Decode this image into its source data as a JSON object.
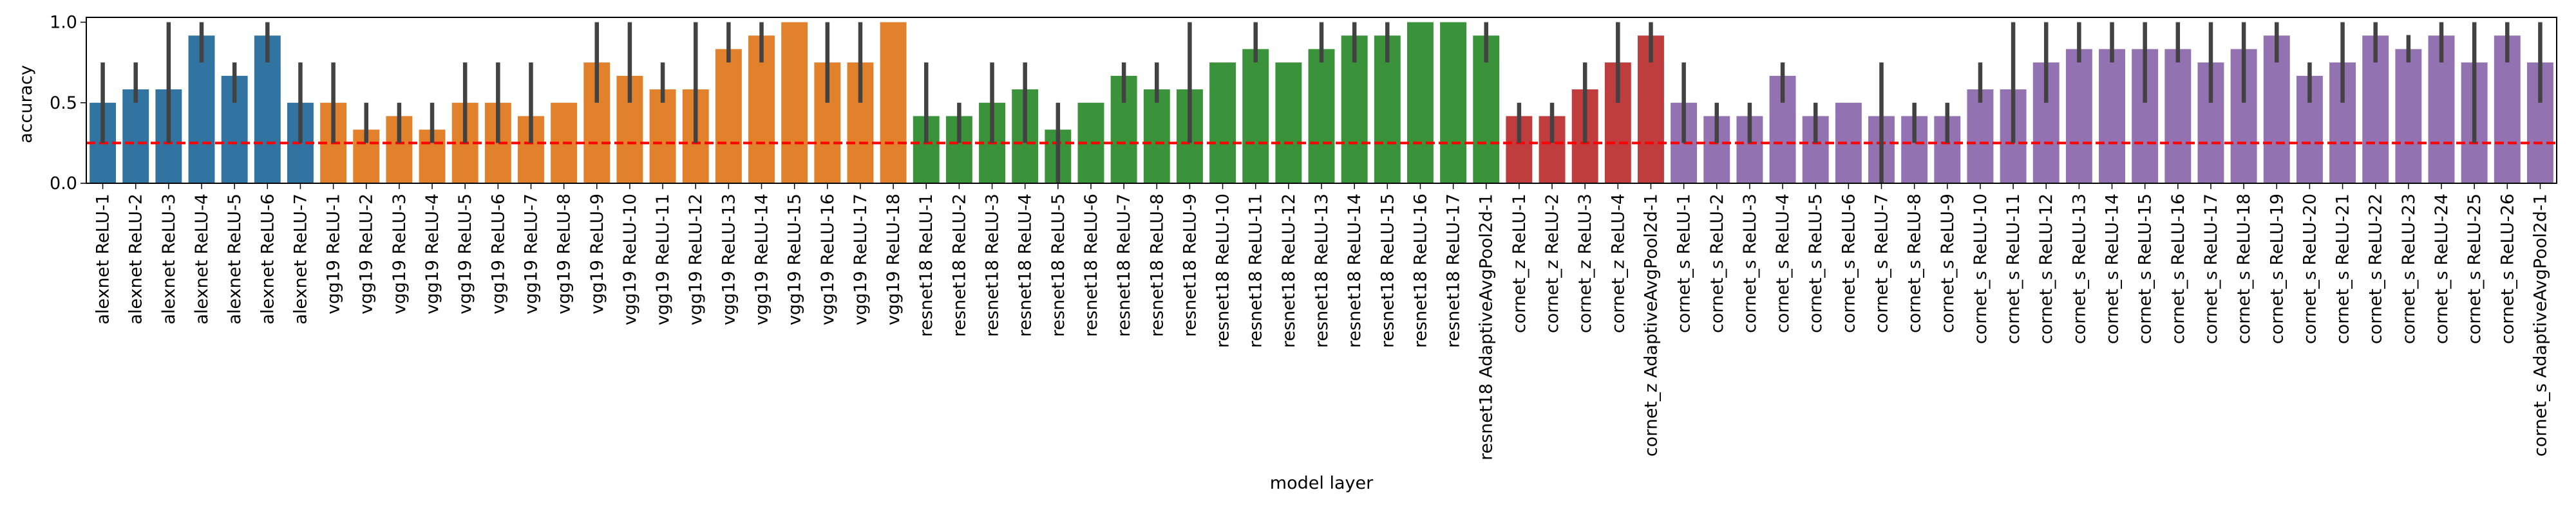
{
  "chart_data": {
    "type": "bar",
    "xlabel": "model layer",
    "ylabel": "accuracy",
    "ylim": [
      0,
      1.03
    ],
    "yticks": [
      0.0,
      0.5,
      1.0
    ],
    "ytick_labels": [
      "0.0",
      "0.5",
      "1.0"
    ],
    "reference_line": {
      "y": 0.25,
      "style": "dashed",
      "color": "#ff0000"
    },
    "grid": false,
    "legend": "none",
    "groups": [
      {
        "color": "#3274a1",
        "start": 0,
        "count": 7
      },
      {
        "color": "#e1812c",
        "start": 7,
        "count": 18
      },
      {
        "color": "#3a923a",
        "start": 25,
        "count": 18
      },
      {
        "color": "#c03d3e",
        "start": 43,
        "count": 5
      },
      {
        "color": "#9372b2",
        "start": 48,
        "count": 27
      }
    ],
    "categories": [
      "alexnet ReLU-1",
      "alexnet ReLU-2",
      "alexnet ReLU-3",
      "alexnet ReLU-4",
      "alexnet ReLU-5",
      "alexnet ReLU-6",
      "alexnet ReLU-7",
      "vgg19 ReLU-1",
      "vgg19 ReLU-2",
      "vgg19 ReLU-3",
      "vgg19 ReLU-4",
      "vgg19 ReLU-5",
      "vgg19 ReLU-6",
      "vgg19 ReLU-7",
      "vgg19 ReLU-8",
      "vgg19 ReLU-9",
      "vgg19 ReLU-10",
      "vgg19 ReLU-11",
      "vgg19 ReLU-12",
      "vgg19 ReLU-13",
      "vgg19 ReLU-14",
      "vgg19 ReLU-15",
      "vgg19 ReLU-16",
      "vgg19 ReLU-17",
      "vgg19 ReLU-18",
      "resnet18 ReLU-1",
      "resnet18 ReLU-2",
      "resnet18 ReLU-3",
      "resnet18 ReLU-4",
      "resnet18 ReLU-5",
      "resnet18 ReLU-6",
      "resnet18 ReLU-7",
      "resnet18 ReLU-8",
      "resnet18 ReLU-9",
      "resnet18 ReLU-10",
      "resnet18 ReLU-11",
      "resnet18 ReLU-12",
      "resnet18 ReLU-13",
      "resnet18 ReLU-14",
      "resnet18 ReLU-15",
      "resnet18 ReLU-16",
      "resnet18 ReLU-17",
      "resnet18 AdaptiveAvgPool2d-1",
      "cornet_z ReLU-1",
      "cornet_z ReLU-2",
      "cornet_z ReLU-3",
      "cornet_z ReLU-4",
      "cornet_z AdaptiveAvgPool2d-1",
      "cornet_s ReLU-1",
      "cornet_s ReLU-2",
      "cornet_s ReLU-3",
      "cornet_s ReLU-4",
      "cornet_s ReLU-5",
      "cornet_s ReLU-6",
      "cornet_s ReLU-7",
      "cornet_s ReLU-8",
      "cornet_s ReLU-9",
      "cornet_s ReLU-10",
      "cornet_s ReLU-11",
      "cornet_s ReLU-12",
      "cornet_s ReLU-13",
      "cornet_s ReLU-14",
      "cornet_s ReLU-15",
      "cornet_s ReLU-16",
      "cornet_s ReLU-17",
      "cornet_s ReLU-18",
      "cornet_s ReLU-19",
      "cornet_s ReLU-20",
      "cornet_s ReLU-21",
      "cornet_s ReLU-22",
      "cornet_s ReLU-23",
      "cornet_s ReLU-24",
      "cornet_s ReLU-25",
      "cornet_s ReLU-26",
      "cornet_s AdaptiveAvgPool2d-1"
    ],
    "values": [
      0.5,
      0.583,
      0.583,
      0.917,
      0.667,
      0.917,
      0.5,
      0.5,
      0.333,
      0.417,
      0.333,
      0.5,
      0.5,
      0.417,
      0.5,
      0.75,
      0.667,
      0.583,
      0.583,
      0.833,
      0.917,
      1.0,
      0.75,
      0.75,
      1.0,
      0.417,
      0.417,
      0.5,
      0.583,
      0.333,
      0.5,
      0.667,
      0.583,
      0.583,
      0.75,
      0.833,
      0.75,
      0.833,
      0.917,
      0.917,
      1.0,
      1.0,
      0.917,
      0.417,
      0.417,
      0.583,
      0.75,
      0.917,
      0.5,
      0.417,
      0.417,
      0.667,
      0.417,
      0.5,
      0.417,
      0.417,
      0.417,
      0.583,
      0.583,
      0.75,
      0.833,
      0.833,
      0.833,
      0.833,
      0.75,
      0.833,
      0.917,
      0.667,
      0.75,
      0.917,
      0.833,
      0.917,
      0.75,
      0.917,
      0.75
    ],
    "error_bars": [
      [
        0.25,
        0.75
      ],
      [
        0.5,
        0.75
      ],
      [
        0.25,
        1.0
      ],
      [
        0.75,
        1.0
      ],
      [
        0.5,
        0.75
      ],
      [
        0.75,
        1.0
      ],
      [
        0.25,
        0.75
      ],
      [
        0.25,
        0.75
      ],
      [
        0.25,
        0.5
      ],
      [
        0.25,
        0.5
      ],
      [
        0.25,
        0.5
      ],
      [
        0.25,
        0.75
      ],
      [
        0.25,
        0.75
      ],
      [
        0.25,
        0.75
      ],
      null,
      [
        0.5,
        1.0
      ],
      [
        0.5,
        1.0
      ],
      [
        0.5,
        0.75
      ],
      [
        0.25,
        1.0
      ],
      [
        0.75,
        1.0
      ],
      [
        0.75,
        1.0
      ],
      null,
      [
        0.5,
        1.0
      ],
      [
        0.5,
        1.0
      ],
      null,
      [
        0.25,
        0.75
      ],
      [
        0.25,
        0.5
      ],
      [
        0.25,
        0.75
      ],
      [
        0.25,
        0.75
      ],
      [
        0.0,
        0.5
      ],
      null,
      [
        0.5,
        0.75
      ],
      [
        0.5,
        0.75
      ],
      [
        0.25,
        1.0
      ],
      null,
      [
        0.75,
        1.0
      ],
      null,
      [
        0.75,
        1.0
      ],
      [
        0.75,
        1.0
      ],
      [
        0.75,
        1.0
      ],
      null,
      null,
      [
        0.75,
        1.0
      ],
      [
        0.25,
        0.5
      ],
      [
        0.25,
        0.5
      ],
      [
        0.25,
        0.75
      ],
      [
        0.5,
        1.0
      ],
      [
        0.75,
        1.0
      ],
      [
        0.25,
        0.75
      ],
      [
        0.25,
        0.5
      ],
      [
        0.25,
        0.5
      ],
      [
        0.5,
        0.75
      ],
      [
        0.25,
        0.5
      ],
      null,
      [
        0.0,
        0.75
      ],
      [
        0.25,
        0.5
      ],
      [
        0.25,
        0.5
      ],
      [
        0.5,
        0.75
      ],
      [
        0.25,
        1.0
      ],
      [
        0.5,
        1.0
      ],
      [
        0.75,
        1.0
      ],
      [
        0.75,
        1.0
      ],
      [
        0.5,
        1.0
      ],
      [
        0.75,
        1.0
      ],
      [
        0.5,
        1.0
      ],
      [
        0.5,
        1.0
      ],
      [
        0.75,
        1.0
      ],
      [
        0.5,
        0.75
      ],
      [
        0.5,
        1.0
      ],
      [
        0.75,
        1.0
      ],
      [
        0.75,
        0.92
      ],
      [
        0.75,
        1.0
      ],
      [
        0.25,
        1.0
      ],
      [
        0.75,
        1.0
      ],
      [
        0.5,
        1.0
      ]
    ]
  }
}
